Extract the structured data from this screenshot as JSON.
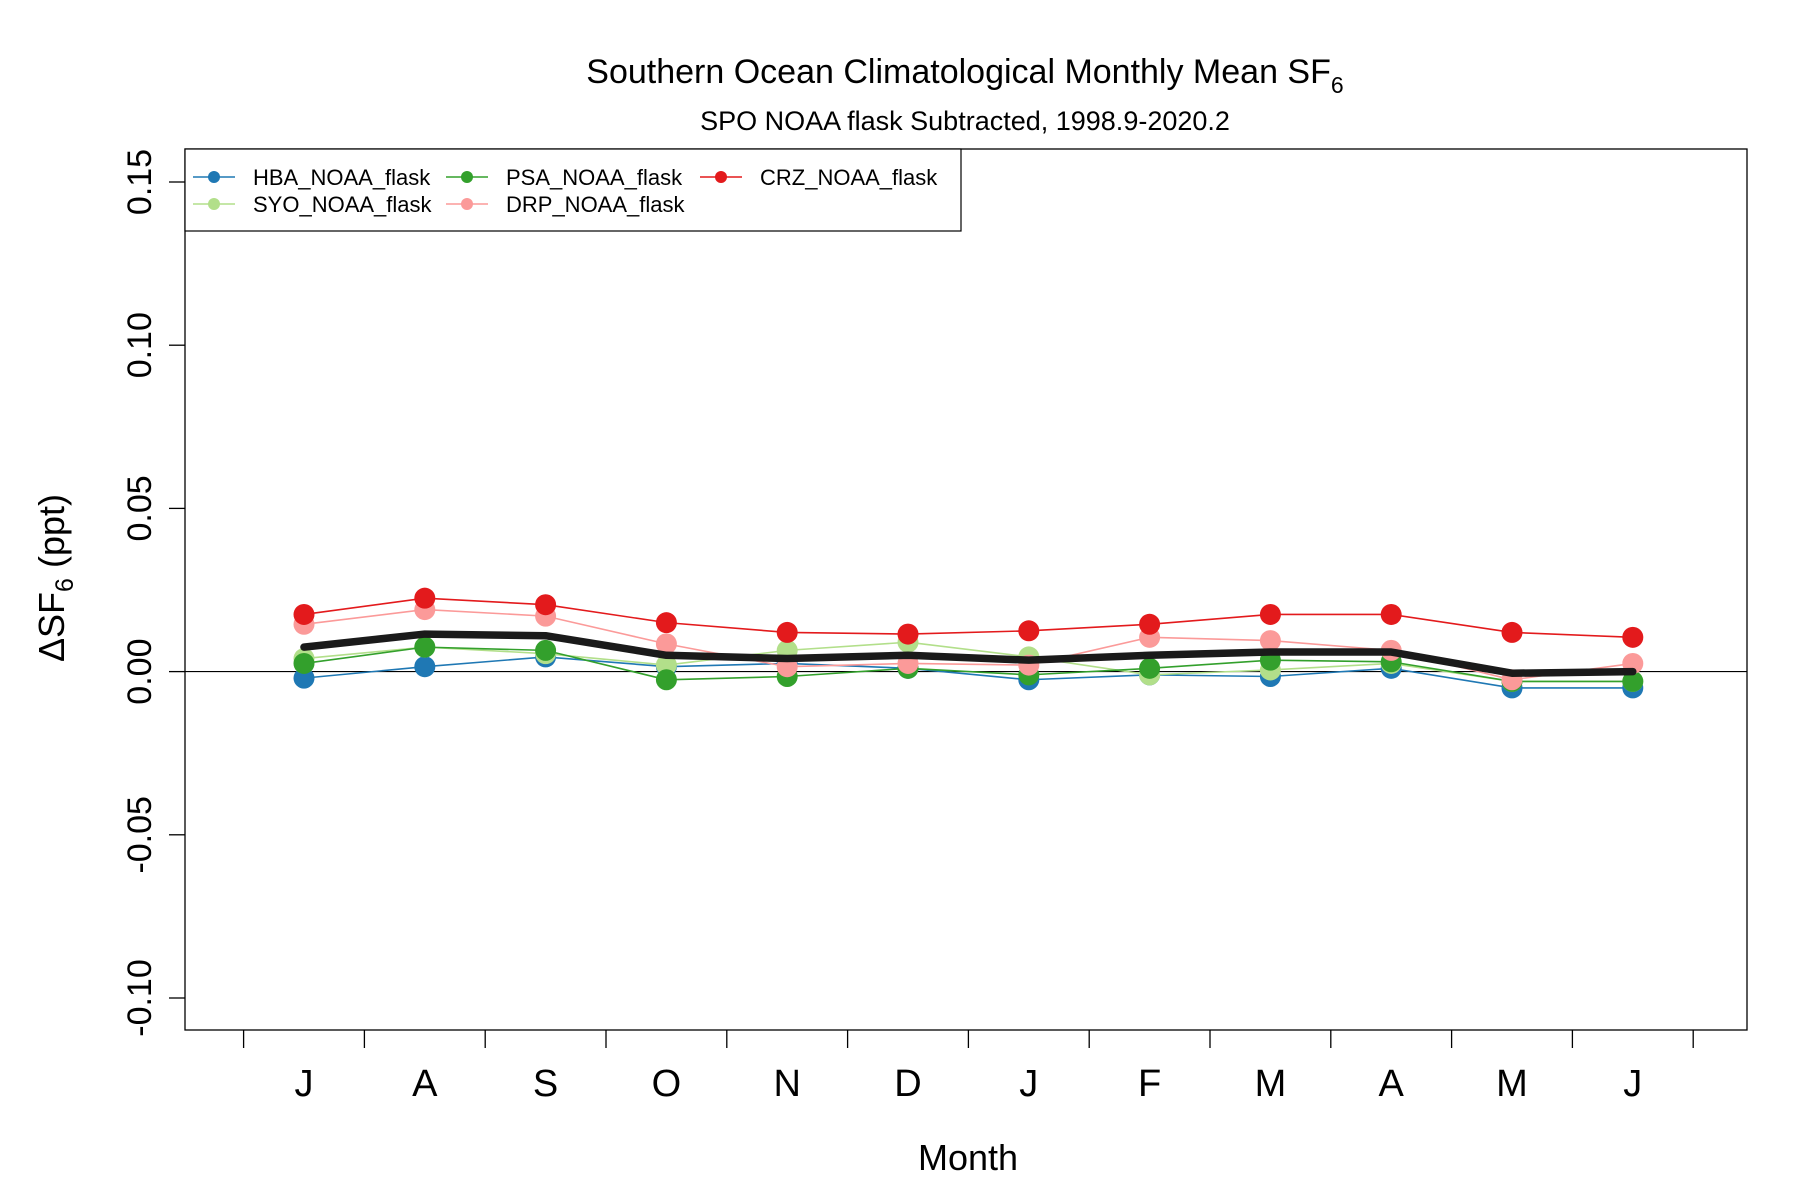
{
  "chart_data": {
    "type": "line",
    "title": "Southern Ocean Climatological Monthly Mean SF",
    "title_subscript": "6",
    "subtitle": "SPO NOAA flask Subtracted, 1998.9-2020.2",
    "xlabel": "Month",
    "ylabel_prefix": "ΔSF",
    "ylabel_subscript": "6",
    "ylabel_suffix": " (ppt)",
    "categories": [
      "J",
      "A",
      "S",
      "O",
      "N",
      "D",
      "J",
      "F",
      "M",
      "A",
      "M",
      "J"
    ],
    "ylim": [
      -0.11,
      0.16
    ],
    "yticks": [
      -0.1,
      -0.05,
      0.0,
      0.05,
      0.1,
      0.15
    ],
    "ytick_labels": [
      "-0.10",
      "-0.05",
      "0.00",
      "0.05",
      "0.10",
      "0.15"
    ],
    "reference_line_y": 0.0,
    "legend_position": "top-left",
    "series": [
      {
        "name": "HBA_NOAA_flask",
        "color": "#1f78b4",
        "values": [
          -0.002,
          0.0015,
          0.0045,
          0.0015,
          0.0025,
          0.001,
          -0.0025,
          -0.001,
          -0.0015,
          0.001,
          -0.005,
          -0.005
        ]
      },
      {
        "name": "SYO_NOAA_flask",
        "color": "#b2df8a",
        "values": [
          0.004,
          0.0075,
          0.0055,
          0.002,
          0.0065,
          0.009,
          0.0045,
          -0.001,
          0.0005,
          0.0025,
          -0.003,
          -0.003
        ]
      },
      {
        "name": "PSA_NOAA_flask",
        "color": "#33a02c",
        "values": [
          0.0025,
          0.0075,
          0.0065,
          -0.0025,
          -0.0015,
          0.001,
          -0.001,
          0.001,
          0.0035,
          0.003,
          -0.003,
          -0.003
        ]
      },
      {
        "name": "DRP_NOAA_flask",
        "color": "#fb9a99",
        "values": [
          0.0145,
          0.019,
          0.017,
          0.0085,
          0.0015,
          0.0025,
          0.002,
          0.0105,
          0.0095,
          0.0065,
          -0.0025,
          0.0025
        ]
      },
      {
        "name": "CRZ_NOAA_flask",
        "color": "#e31a1c",
        "values": [
          0.0175,
          0.0225,
          0.0205,
          0.015,
          0.012,
          0.0115,
          0.0125,
          0.0145,
          0.0175,
          0.0175,
          0.012,
          0.0105
        ]
      }
    ],
    "mean_series": {
      "color": "#1a1a1a",
      "values": [
        0.0075,
        0.0115,
        0.011,
        0.005,
        0.004,
        0.005,
        0.0035,
        0.005,
        0.006,
        0.006,
        -0.0005,
        0.0
      ]
    }
  }
}
